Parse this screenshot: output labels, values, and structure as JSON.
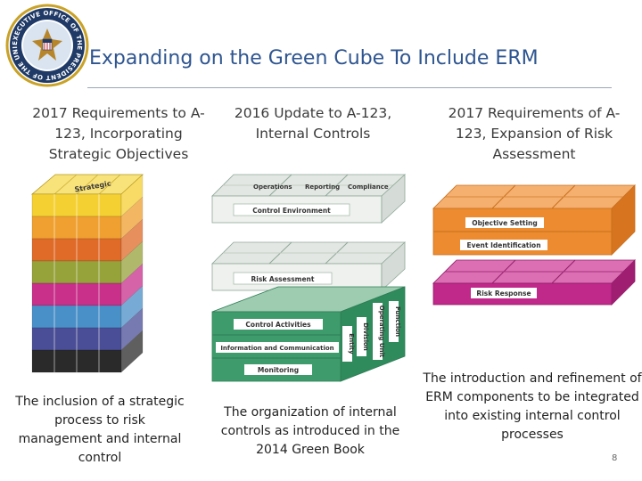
{
  "seal": {
    "text_top": "EXECUTIVE OFFICE OF THE PRESIDENT OF THE UNITED STATES"
  },
  "title": "Expanding on the Green Cube To Include ERM",
  "columns": [
    {
      "header": "2017 Requirements to A-123, Incorporating Strategic Objectives",
      "caption": "The inclusion of a strategic process to risk management and internal control",
      "cube_label": "Strategic"
    },
    {
      "header": "2016 Update to A-123, Internal Controls",
      "caption": "The organization of internal controls as introduced in the 2014 Green Book",
      "top_labels": [
        "Operations",
        "Reporting",
        "Compliance"
      ],
      "layers": [
        "Control Environment",
        "Risk Assessment",
        "Control Activities",
        "Information and Communication",
        "Monitoring"
      ],
      "side_labels": [
        "Entity",
        "Division",
        "Operating Unit",
        "Function"
      ]
    },
    {
      "header": "2017 Requirements of A-123, Expansion of Risk Assessment",
      "caption": "The introduction and refinement of ERM components to be integrated into existing internal control processes",
      "layers": [
        "Objective Setting",
        "Event Identification",
        "Risk Response"
      ]
    }
  ],
  "colors": {
    "title": "#2E5590",
    "green": "#3E9C6C",
    "orange": "#EC8B2F",
    "magenta": "#C0288A",
    "strategic_stripes": [
      "#F5D033",
      "#F0A030",
      "#E06A28",
      "#96A23A",
      "#C8308A",
      "#4A90C8",
      "#4A4E96",
      "#2A2A2A"
    ]
  },
  "page_number": "8"
}
